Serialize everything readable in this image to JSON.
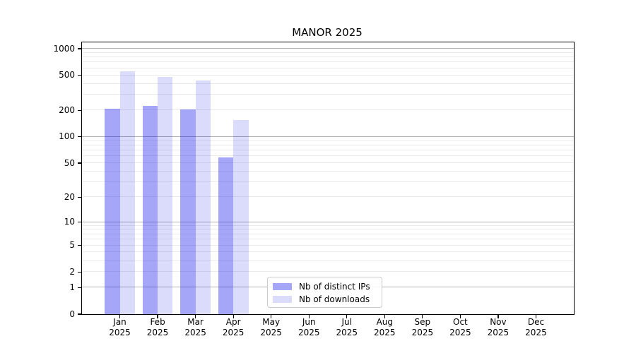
{
  "chart_data": {
    "type": "bar",
    "title": "MANOR 2025",
    "x_labels": [
      {
        "line1": "Jan",
        "line2": "2025"
      },
      {
        "line1": "Feb",
        "line2": "2025"
      },
      {
        "line1": "Mar",
        "line2": "2025"
      },
      {
        "line1": "Apr",
        "line2": "2025"
      },
      {
        "line1": "May",
        "line2": "2025"
      },
      {
        "line1": "Jun",
        "line2": "2025"
      },
      {
        "line1": "Jul",
        "line2": "2025"
      },
      {
        "line1": "Aug",
        "line2": "2025"
      },
      {
        "line1": "Sep",
        "line2": "2025"
      },
      {
        "line1": "Oct",
        "line2": "2025"
      },
      {
        "line1": "Nov",
        "line2": "2025"
      },
      {
        "line1": "Dec",
        "line2": "2025"
      }
    ],
    "series": [
      {
        "name": "Nb of distinct IPs",
        "color": "rgba(0,0,235,0.35)",
        "color_hex_on_white": "#a6a6f8",
        "values": [
          210,
          225,
          205,
          58,
          0,
          0,
          0,
          0,
          0,
          0,
          0,
          0
        ]
      },
      {
        "name": "Nb of downloads",
        "color": "rgba(0,0,235,0.14)",
        "color_hex_on_white": "#dbdbfc",
        "values": [
          560,
          480,
          440,
          155,
          0,
          0,
          0,
          0,
          0,
          0,
          0,
          0
        ]
      }
    ],
    "y_ticks": [
      0,
      1,
      2,
      5,
      10,
      20,
      50,
      100,
      200,
      500,
      1000
    ],
    "y_scale": "log10(value+1)",
    "ylim": [
      0,
      1180
    ],
    "major_gridlines": [
      1,
      10,
      100,
      1000
    ],
    "grid": "horizontal major + minor log subdivisions",
    "legend_position": "lower center",
    "xlabel": "",
    "ylabel": ""
  },
  "colors": {
    "background": "#ffffff",
    "spine": "#000000",
    "major_grid": "#b2b2b2",
    "minor_grid": "#ebebeb",
    "legend_border": "#cccccc"
  }
}
